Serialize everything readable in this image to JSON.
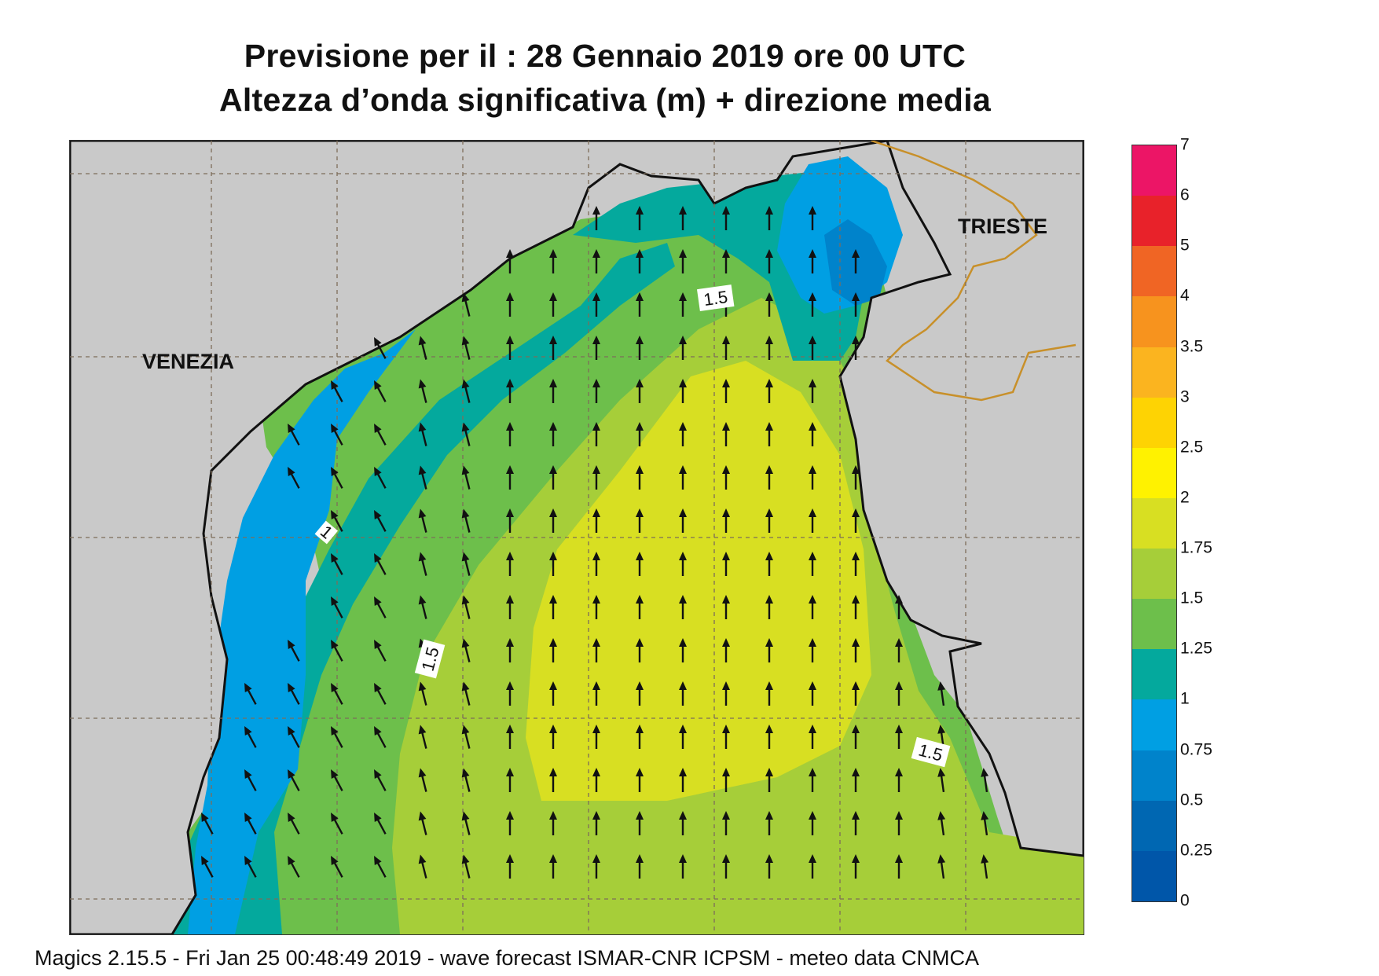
{
  "title": {
    "line1": "Previsione per il  :  28  Gennaio  2019   ore 00 UTC",
    "line2": "Altezza d’onda significativa (m) + direzione media"
  },
  "map": {
    "cities": [
      "VENEZIA",
      "TRIESTE"
    ],
    "contour_labels": [
      "1.5",
      "1.5",
      "1.5",
      "1"
    ],
    "land_color": "#c9c9c9",
    "coast_color": "#111111",
    "border_color": "#c8902a",
    "arrow_direction": "north"
  },
  "legend": {
    "ticks": [
      "7",
      "6",
      "5",
      "4",
      "3.5",
      "3",
      "2.5",
      "2",
      "1.75",
      "1.5",
      "1.25",
      "1",
      "0.75",
      "0.5",
      "0.25",
      "0"
    ],
    "colors": [
      "#ec1566",
      "#e8222a",
      "#f06524",
      "#f7931e",
      "#fbb41f",
      "#fed303",
      "#fff200",
      "#d8df22",
      "#a6ce39",
      "#6dbf4b",
      "#04a99d",
      "#009fe3",
      "#0083cb",
      "#0067b2",
      "#0056a9"
    ]
  },
  "footer": "Magics 2.15.5 - Fri Jan 25 00:48:49 2019 - wave forecast  ISMAR-CNR  ICPSM - meteo data    CNMCA"
}
